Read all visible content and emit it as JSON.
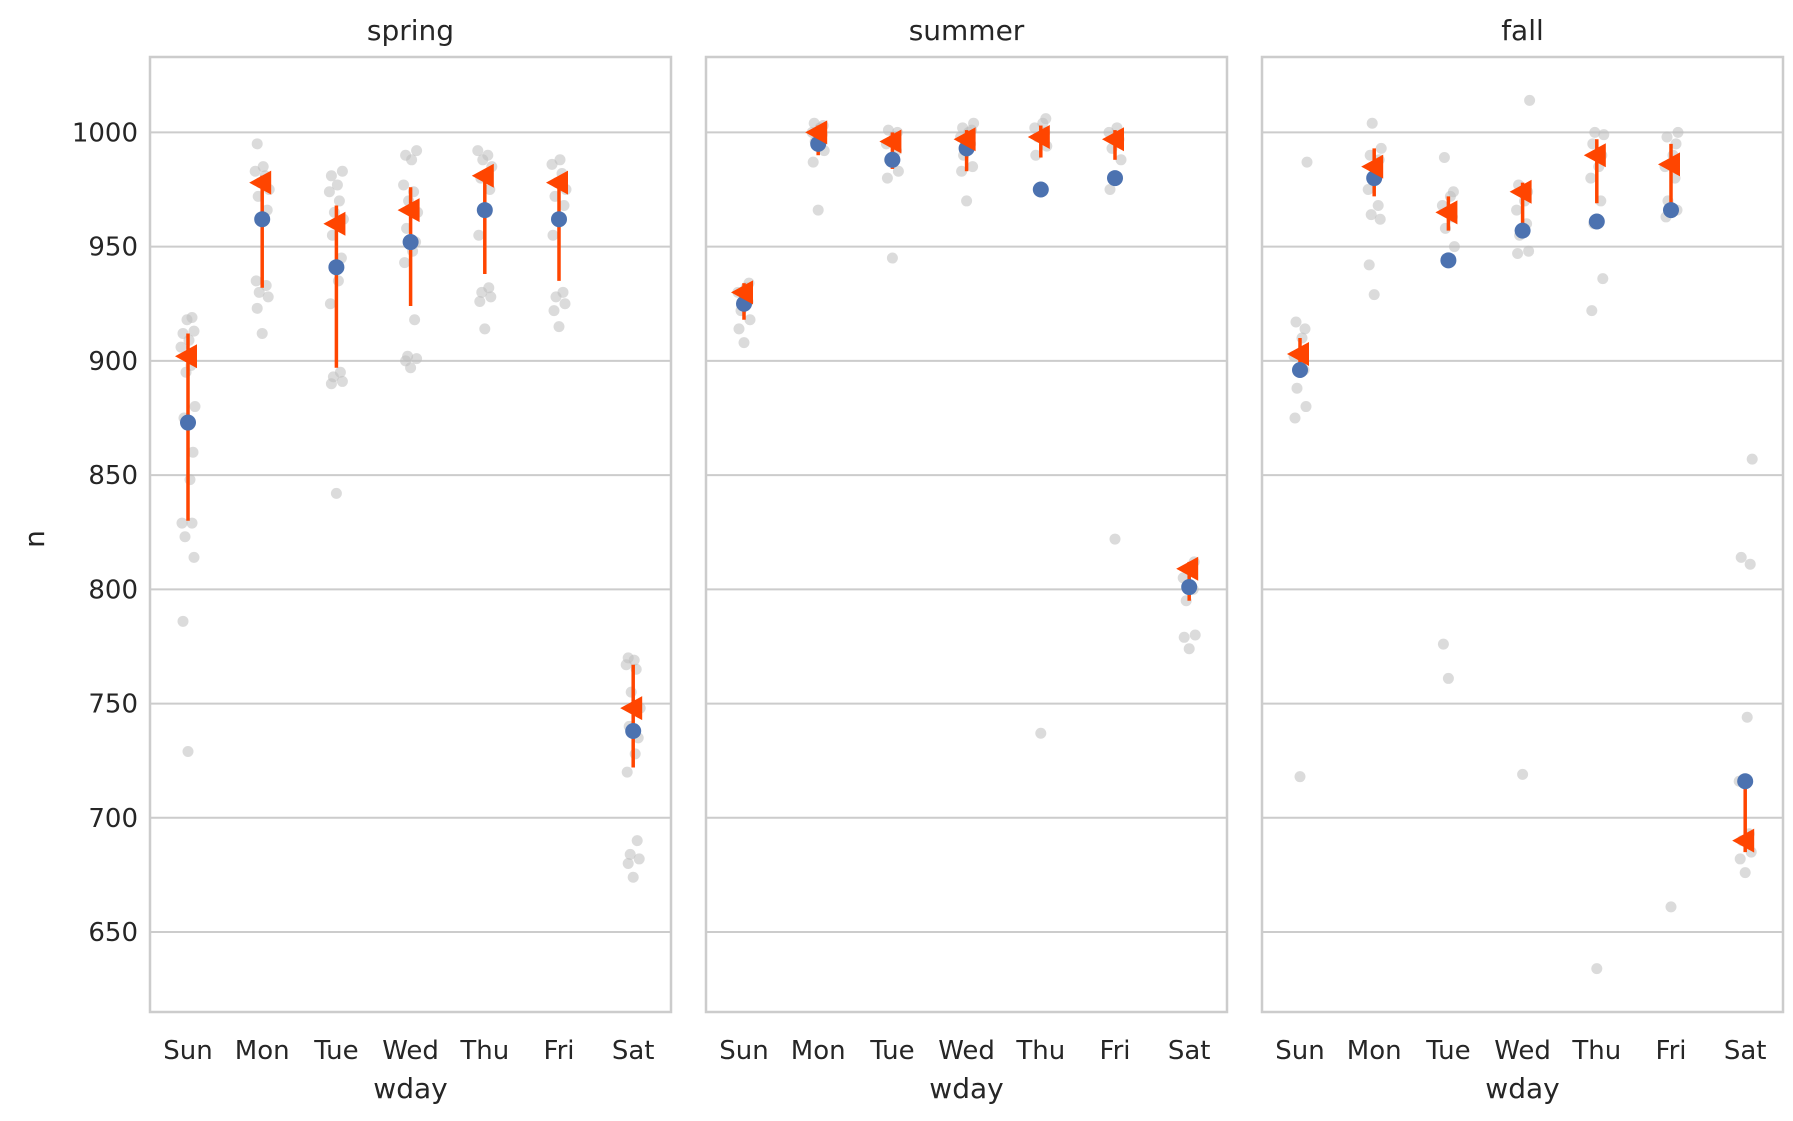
{
  "chart_data": {
    "type": "scatter",
    "ylabel": "n",
    "xlabel": "wday",
    "ylim": [
      615,
      1033
    ],
    "yticks": [
      650,
      700,
      750,
      800,
      850,
      900,
      950,
      1000
    ],
    "categories": [
      "Sun",
      "Mon",
      "Tue",
      "Wed",
      "Thu",
      "Fri",
      "Sat"
    ],
    "grid": "horizontal",
    "colors": {
      "raw_points": "#bdbdbd",
      "median_point": "#4c72b0",
      "mean_marker": "#ff4500",
      "interval": "#ff4500",
      "grid": "#cccccc",
      "frame": "#cccccc"
    },
    "panels": [
      {
        "title": "spring",
        "medians": [
          873,
          962,
          941,
          952,
          966,
          962,
          738
        ],
        "means": [
          902,
          978,
          960,
          966,
          981,
          978,
          748
        ],
        "intervals": [
          [
            830,
            912
          ],
          [
            932,
            981
          ],
          [
            897,
            968
          ],
          [
            924,
            976
          ],
          [
            938,
            982
          ],
          [
            935,
            980
          ],
          [
            722,
            767
          ]
        ],
        "raw": [
          [
            729,
            786,
            814,
            823,
            829,
            829,
            848,
            860,
            875,
            880,
            895,
            898,
            906,
            909,
            912,
            913,
            918,
            919
          ],
          [
            912,
            923,
            928,
            930,
            933,
            935,
            962,
            966,
            972,
            975,
            978,
            981,
            983,
            985,
            995
          ],
          [
            842,
            890,
            891,
            893,
            895,
            925,
            935,
            945,
            955,
            962,
            965,
            970,
            974,
            977,
            981,
            983
          ],
          [
            897,
            900,
            901,
            902,
            918,
            943,
            948,
            952,
            958,
            965,
            970,
            974,
            977,
            988,
            990,
            992
          ],
          [
            914,
            926,
            928,
            930,
            932,
            955,
            965,
            975,
            980,
            985,
            988,
            990,
            992
          ],
          [
            915,
            922,
            925,
            928,
            930,
            955,
            962,
            968,
            972,
            975,
            978,
            982,
            986,
            988
          ],
          [
            674,
            680,
            682,
            684,
            690,
            720,
            728,
            735,
            740,
            748,
            755,
            765,
            767,
            769,
            770
          ]
        ]
      },
      {
        "title": "summer",
        "medians": [
          925,
          995,
          988,
          993,
          975,
          980,
          801
        ],
        "means": [
          930,
          1000,
          996,
          997,
          998,
          997,
          809
        ],
        "intervals": [
          [
            918,
            934
          ],
          [
            990,
            1003
          ],
          [
            984,
            1000
          ],
          [
            983,
            1001
          ],
          [
            989,
            1003
          ],
          [
            988,
            1001
          ],
          [
            795,
            812
          ]
        ],
        "raw": [
          [
            908,
            914,
            918,
            922,
            926,
            930,
            932,
            934
          ],
          [
            966,
            987,
            992,
            996,
            999,
            1000,
            1002,
            1003,
            1004
          ],
          [
            945,
            980,
            983,
            988,
            992,
            995,
            998,
            1000,
            1001
          ],
          [
            970,
            983,
            985,
            990,
            995,
            998,
            1000,
            1001,
            1002,
            1004
          ],
          [
            737,
            990,
            994,
            998,
            1000,
            1002,
            1004,
            1006
          ],
          [
            822,
            975,
            988,
            993,
            997,
            1000,
            1002
          ],
          [
            774,
            779,
            780,
            795,
            800,
            805,
            810,
            812
          ]
        ]
      },
      {
        "title": "fall",
        "medians": [
          896,
          980,
          944,
          957,
          961,
          966,
          716
        ],
        "means": [
          903,
          985,
          965,
          974,
          990,
          986,
          690
        ],
        "intervals": [
          [
            895,
            910
          ],
          [
            972,
            993
          ],
          [
            957,
            972
          ],
          [
            955,
            978
          ],
          [
            969,
            997
          ],
          [
            964,
            995
          ],
          [
            685,
            717
          ]
        ],
        "raw": [
          [
            718,
            875,
            880,
            888,
            896,
            902,
            910,
            914,
            917,
            987
          ],
          [
            929,
            942,
            962,
            964,
            968,
            975,
            982,
            988,
            990,
            993,
            1004
          ],
          [
            761,
            776,
            950,
            958,
            963,
            968,
            972,
            974,
            989
          ],
          [
            719,
            947,
            948,
            955,
            960,
            966,
            970,
            974,
            977,
            1014
          ],
          [
            634,
            922,
            936,
            960,
            970,
            980,
            985,
            990,
            995,
            999,
            1000
          ],
          [
            661,
            963,
            966,
            970,
            980,
            985,
            990,
            995,
            998,
            1000
          ],
          [
            676,
            682,
            685,
            690,
            693,
            716,
            744,
            811,
            814,
            857
          ]
        ]
      }
    ]
  }
}
